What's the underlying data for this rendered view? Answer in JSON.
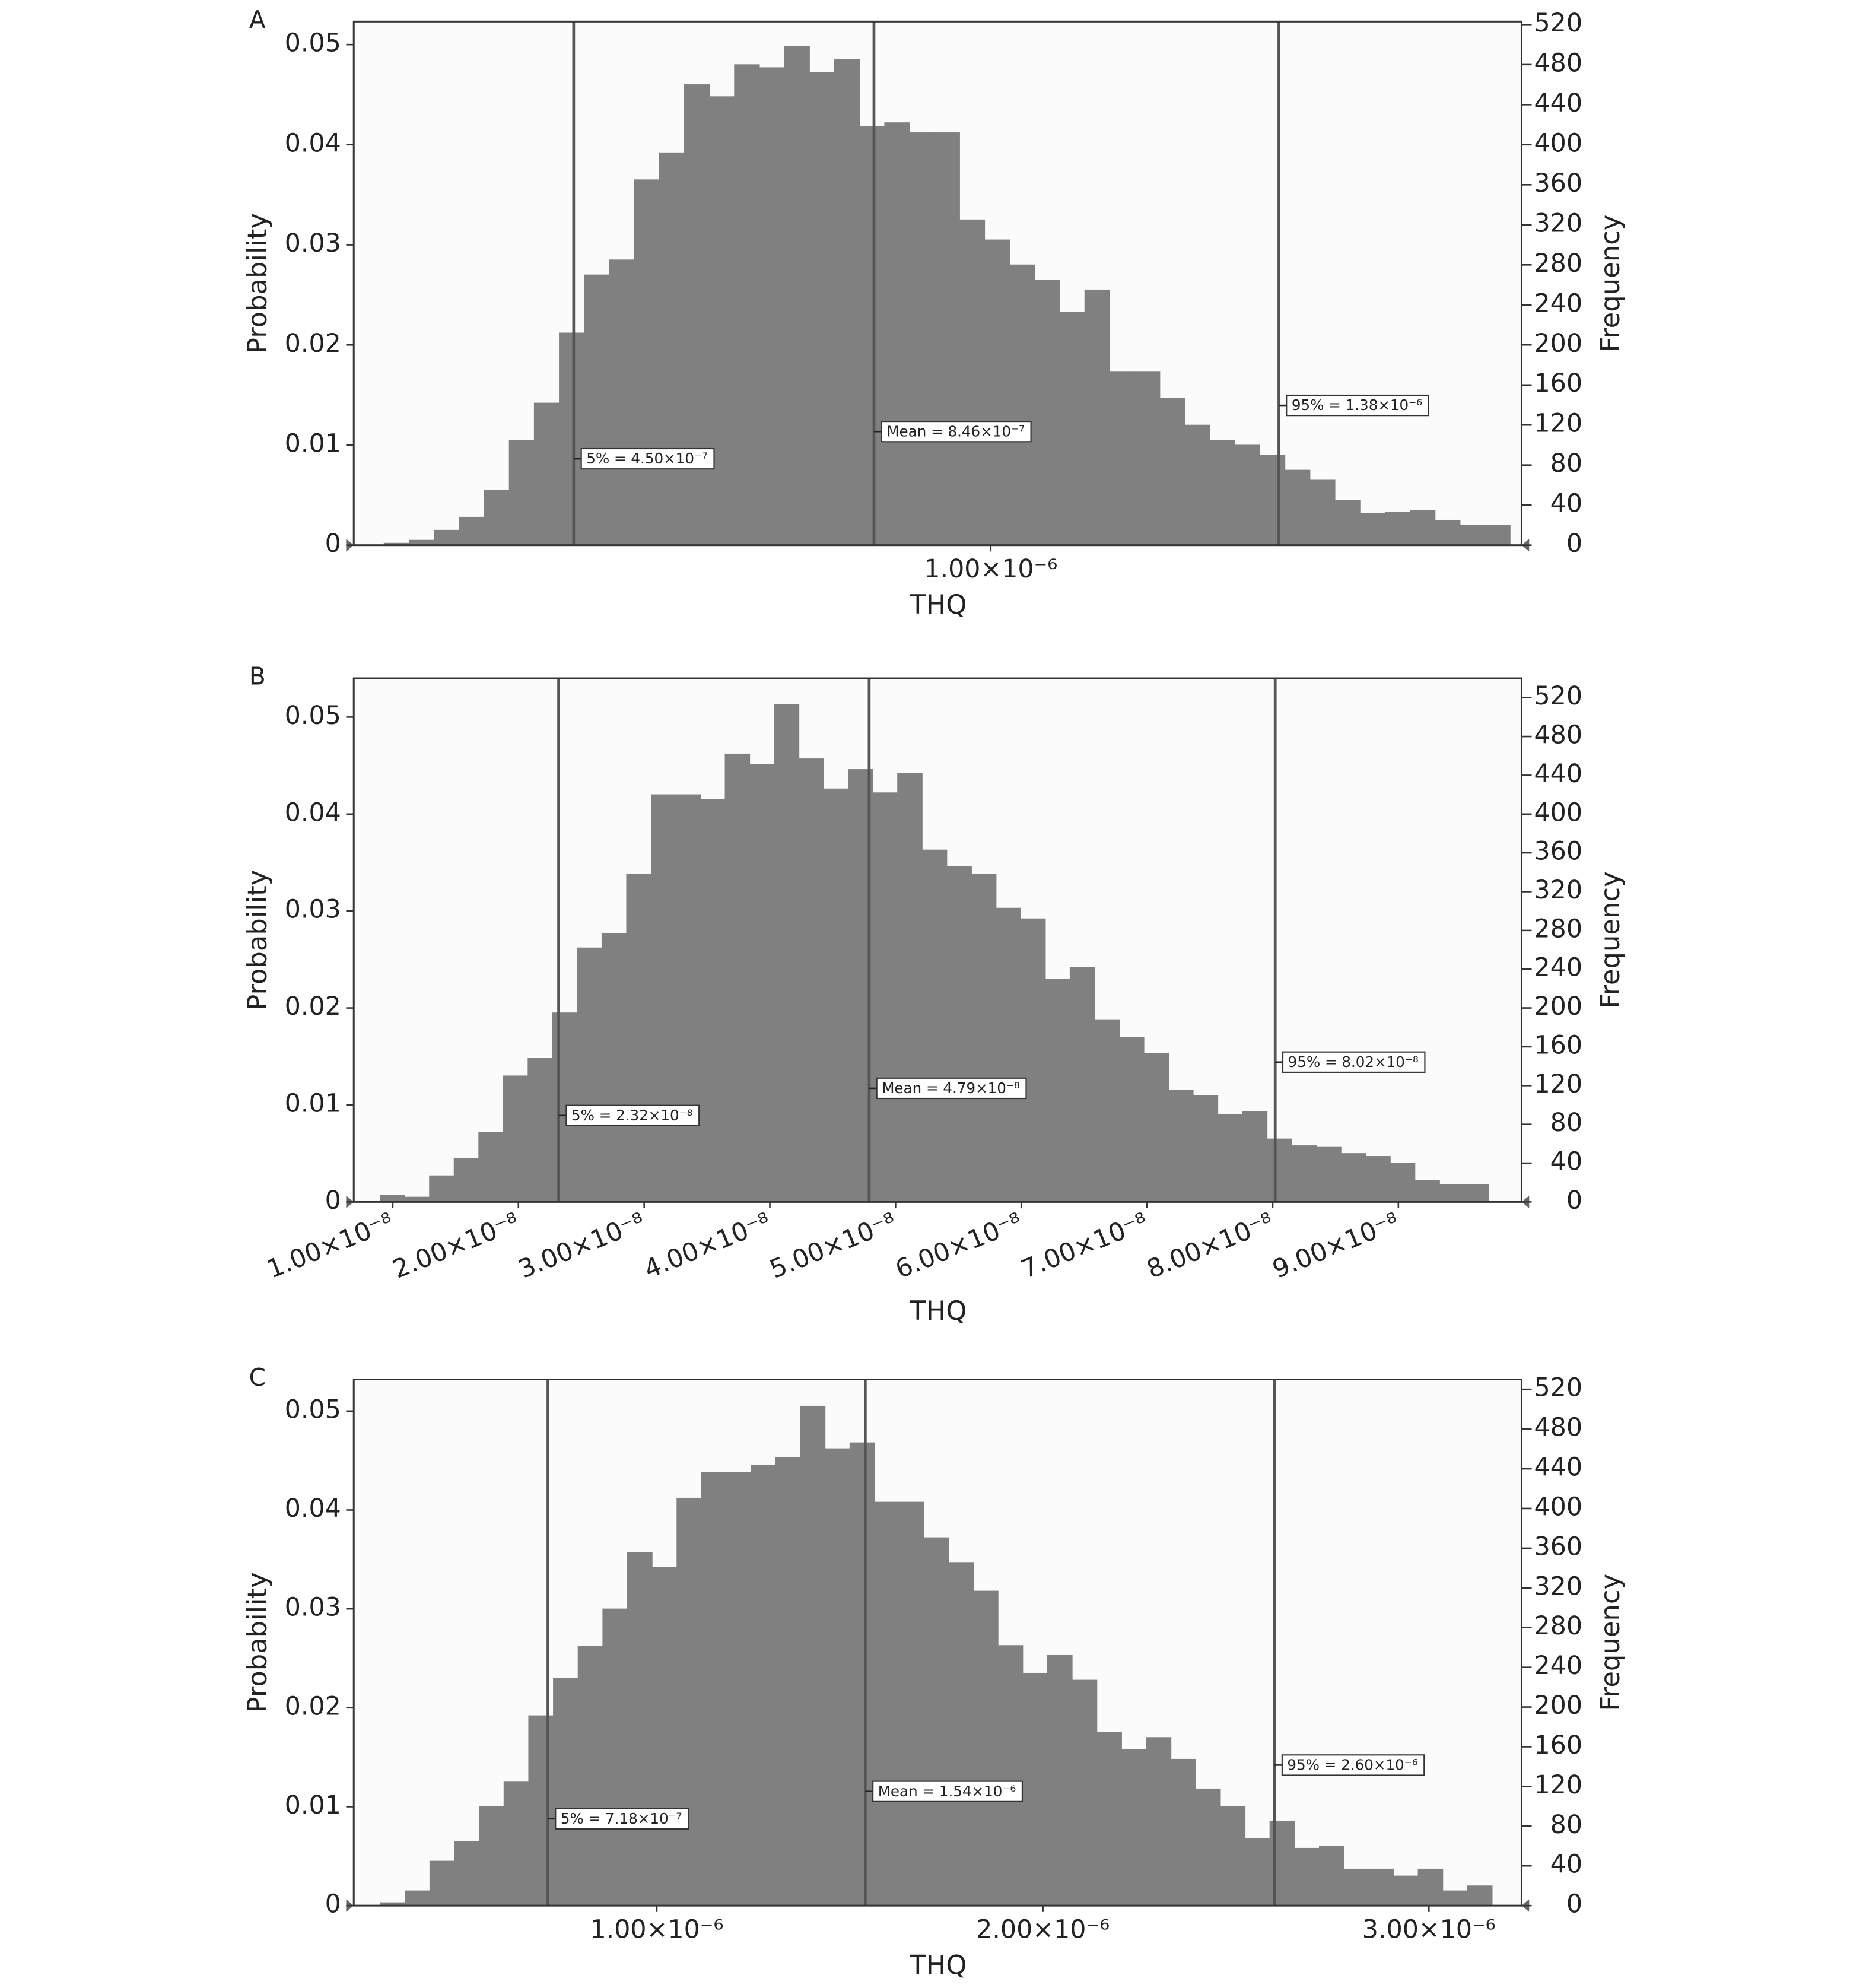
{
  "chart_data": [
    {
      "type": "histogram",
      "title": "A",
      "xlabel": "THQ",
      "ylabel": "Probability",
      "y2label": "Frequency",
      "color": "#808080",
      "bins": [
        2e-07,
        2.33e-07,
        2.66e-07,
        2.99e-07,
        3.32e-07,
        3.65e-07,
        3.98e-07,
        4.31e-07,
        4.64e-07,
        4.97e-07,
        5.3e-07,
        5.63e-07,
        5.96e-07,
        6.29e-07,
        6.62e-07,
        6.95e-07,
        7.28e-07,
        7.61e-07,
        7.94e-07,
        8.27e-07,
        8.6e-07,
        8.93e-07,
        9.26e-07,
        9.59e-07,
        9.92e-07,
        1.025e-06,
        1.058e-06,
        1.091e-06,
        1.124e-06,
        1.157e-06,
        1.19e-06,
        1.223e-06,
        1.256e-06,
        1.289e-06,
        1.322e-06,
        1.355e-06,
        1.388e-06,
        1.421e-06,
        1.454e-06,
        1.487e-06,
        1.52e-06,
        1.553e-06,
        1.586e-06,
        1.619e-06,
        1.652e-06,
        1.685e-06
      ],
      "values": [
        0.0002,
        0.0005,
        0.0015,
        0.0028,
        0.0055,
        0.0105,
        0.0142,
        0.0212,
        0.027,
        0.0285,
        0.0365,
        0.0392,
        0.046,
        0.0448,
        0.048,
        0.0477,
        0.0498,
        0.0472,
        0.0485,
        0.0418,
        0.0422,
        0.0412,
        0.0412,
        0.0325,
        0.0305,
        0.028,
        0.0265,
        0.0233,
        0.0255,
        0.0173,
        0.0173,
        0.0147,
        0.012,
        0.0105,
        0.01,
        0.009,
        0.0075,
        0.0065,
        0.0045,
        0.0032,
        0.0033,
        0.0035,
        0.0025,
        0.002,
        0.002
      ],
      "xlim": [
        1.6e-07,
        1.7e-06
      ],
      "xticks": [
        {
          "value": 1e-06,
          "label": "1.00×10⁻⁶"
        }
      ],
      "ylim": [
        0,
        0.0523
      ],
      "yticks": [
        0,
        0.01,
        0.02,
        0.03,
        0.04,
        0.05
      ],
      "y2lim": [
        0,
        523
      ],
      "y2ticks": [
        0,
        40,
        80,
        120,
        160,
        200,
        240,
        280,
        320,
        360,
        400,
        440,
        480,
        520
      ],
      "markers": [
        {
          "value": 4.5e-07,
          "label": "5% = 4.50×10⁻⁷"
        },
        {
          "value": 8.46e-07,
          "label": "Mean = 8.46×10⁻⁷"
        },
        {
          "value": 1.38e-06,
          "label": "95% = 1.38×10⁻⁶"
        }
      ]
    },
    {
      "type": "histogram",
      "title": "B",
      "xlabel": "THQ",
      "ylabel": "Probability",
      "y2label": "Frequency",
      "color": "#808080",
      "bins": [
        9e-09,
        1.096e-08,
        1.292e-08,
        1.488e-08,
        1.684e-08,
        1.88e-08,
        2.076e-08,
        2.272e-08,
        2.468e-08,
        2.664e-08,
        2.86e-08,
        3.056e-08,
        3.252e-08,
        3.448e-08,
        3.644e-08,
        3.84e-08,
        4.036e-08,
        4.232e-08,
        4.428e-08,
        4.624e-08,
        4.82e-08,
        5.016e-08,
        5.212e-08,
        5.408e-08,
        5.604e-08,
        5.8e-08,
        5.996e-08,
        6.192e-08,
        6.388e-08,
        6.584e-08,
        6.78e-08,
        6.976e-08,
        7.172e-08,
        7.368e-08,
        7.564e-08,
        7.76e-08,
        7.956e-08,
        8.152e-08,
        8.348e-08,
        8.544e-08,
        8.74e-08,
        8.936e-08,
        9.132e-08,
        9.328e-08,
        9.524e-08,
        9.72e-08
      ],
      "values": [
        0.0007,
        0.0005,
        0.0027,
        0.0045,
        0.0072,
        0.013,
        0.0148,
        0.0195,
        0.0262,
        0.0277,
        0.0338,
        0.042,
        0.042,
        0.0415,
        0.0462,
        0.0451,
        0.0513,
        0.0457,
        0.0426,
        0.0446,
        0.0422,
        0.0442,
        0.0363,
        0.0346,
        0.0338,
        0.0303,
        0.0292,
        0.023,
        0.0242,
        0.0188,
        0.017,
        0.0153,
        0.0115,
        0.011,
        0.009,
        0.0093,
        0.0065,
        0.0058,
        0.0057,
        0.005,
        0.0047,
        0.004,
        0.0022,
        0.0018,
        0.0018
      ],
      "xlim": [
        6.9e-09,
        9.98e-08
      ],
      "xticks": [
        {
          "value": 1e-08,
          "label": "1.00×10⁻⁸"
        },
        {
          "value": 2e-08,
          "label": "2.00×10⁻⁸"
        },
        {
          "value": 3e-08,
          "label": "3.00×10⁻⁸"
        },
        {
          "value": 4e-08,
          "label": "4.00×10⁻⁸"
        },
        {
          "value": 5e-08,
          "label": "5.00×10⁻⁸"
        },
        {
          "value": 6e-08,
          "label": "6.00×10⁻⁸"
        },
        {
          "value": 7e-08,
          "label": "7.00×10⁻⁸"
        },
        {
          "value": 8e-08,
          "label": "8.00×10⁻⁸"
        },
        {
          "value": 9e-08,
          "label": "9.00×10⁻⁸"
        }
      ],
      "ylim": [
        0,
        0.054
      ],
      "yticks": [
        0,
        0.01,
        0.02,
        0.03,
        0.04,
        0.05
      ],
      "y2lim": [
        0,
        540
      ],
      "y2ticks": [
        0,
        40,
        80,
        120,
        160,
        200,
        240,
        280,
        320,
        360,
        400,
        440,
        480,
        520
      ],
      "markers": [
        {
          "value": 2.32e-08,
          "label": "5% = 2.32×10⁻⁸"
        },
        {
          "value": 4.79e-08,
          "label": "Mean = 4.79×10⁻⁸"
        },
        {
          "value": 8.02e-08,
          "label": "95% = 8.02×10⁻⁸"
        }
      ]
    },
    {
      "type": "histogram",
      "title": "C",
      "xlabel": "THQ",
      "ylabel": "Probability",
      "y2label": "Frequency",
      "color": "#808080",
      "bins": [
        2.84e-07,
        3.48e-07,
        4.12e-07,
        4.76e-07,
        5.4e-07,
        6.04e-07,
        6.68e-07,
        7.32e-07,
        7.96e-07,
        8.6e-07,
        9.24e-07,
        9.88e-07,
        1.052e-06,
        1.116e-06,
        1.18e-06,
        1.244e-06,
        1.308e-06,
        1.372e-06,
        1.436e-06,
        1.5e-06,
        1.564e-06,
        1.628e-06,
        1.692e-06,
        1.756e-06,
        1.82e-06,
        1.884e-06,
        1.948e-06,
        2.012e-06,
        2.076e-06,
        2.14e-06,
        2.204e-06,
        2.268e-06,
        2.332e-06,
        2.396e-06,
        2.46e-06,
        2.524e-06,
        2.588e-06,
        2.652e-06,
        2.716e-06,
        2.78e-06,
        2.844e-06,
        2.908e-06,
        2.972e-06,
        3.036e-06,
        3.1e-06,
        3.164e-06
      ],
      "values": [
        0.0003,
        0.0015,
        0.0045,
        0.0065,
        0.01,
        0.0125,
        0.0192,
        0.023,
        0.0262,
        0.03,
        0.0357,
        0.0342,
        0.0412,
        0.0438,
        0.0438,
        0.0445,
        0.0453,
        0.0505,
        0.0462,
        0.0468,
        0.0408,
        0.0408,
        0.0372,
        0.0347,
        0.0318,
        0.0263,
        0.0235,
        0.0253,
        0.0228,
        0.0175,
        0.0158,
        0.017,
        0.0148,
        0.0118,
        0.01,
        0.0068,
        0.0085,
        0.0058,
        0.006,
        0.0037,
        0.0037,
        0.003,
        0.0037,
        0.0015,
        0.002
      ],
      "xlim": [
        2.15e-07,
        3.24e-06
      ],
      "xticks": [
        {
          "value": 1e-06,
          "label": "1.00×10⁻⁶"
        },
        {
          "value": 2e-06,
          "label": "2.00×10⁻⁶"
        },
        {
          "value": 3e-06,
          "label": "3.00×10⁻⁶"
        }
      ],
      "ylim": [
        0,
        0.0532
      ],
      "yticks": [
        0,
        0.01,
        0.02,
        0.03,
        0.04,
        0.05
      ],
      "y2lim": [
        0,
        530
      ],
      "y2ticks": [
        0,
        40,
        80,
        120,
        160,
        200,
        240,
        280,
        320,
        360,
        400,
        440,
        480,
        520
      ],
      "markers": [
        {
          "value": 7.18e-07,
          "label": "5% = 7.18×10⁻⁷"
        },
        {
          "value": 1.54e-06,
          "label": "Mean = 1.54×10⁻⁶"
        },
        {
          "value": 2.6e-06,
          "label": "95% = 2.60×10⁻⁶"
        }
      ]
    }
  ]
}
